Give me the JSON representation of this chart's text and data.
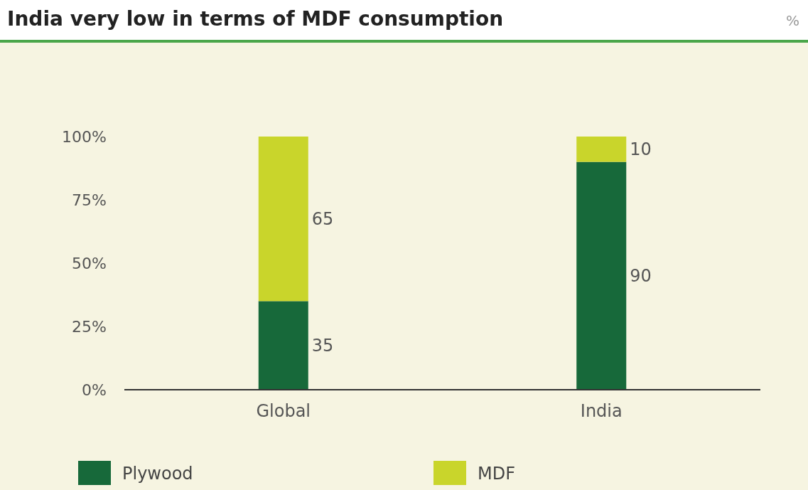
{
  "chart_data": {
    "type": "bar",
    "title": "India very low in terms of MDF consumption",
    "annotations": [
      "%"
    ],
    "categories": [
      "Global",
      "India"
    ],
    "series": [
      {
        "name": "Plywood",
        "color": "#17693a",
        "values": [
          35,
          90
        ]
      },
      {
        "name": "MDF",
        "color": "#c9d52b",
        "values": [
          65,
          10
        ]
      }
    ],
    "stacked": true,
    "data_labels": true,
    "ylim": [
      0,
      100
    ],
    "yticks": [
      {
        "value": 0,
        "label": "0%"
      },
      {
        "value": 25,
        "label": "25%"
      },
      {
        "value": 50,
        "label": "50%"
      },
      {
        "value": 75,
        "label": "75%"
      },
      {
        "value": 100,
        "label": "100%"
      }
    ],
    "legend": "bottom"
  }
}
